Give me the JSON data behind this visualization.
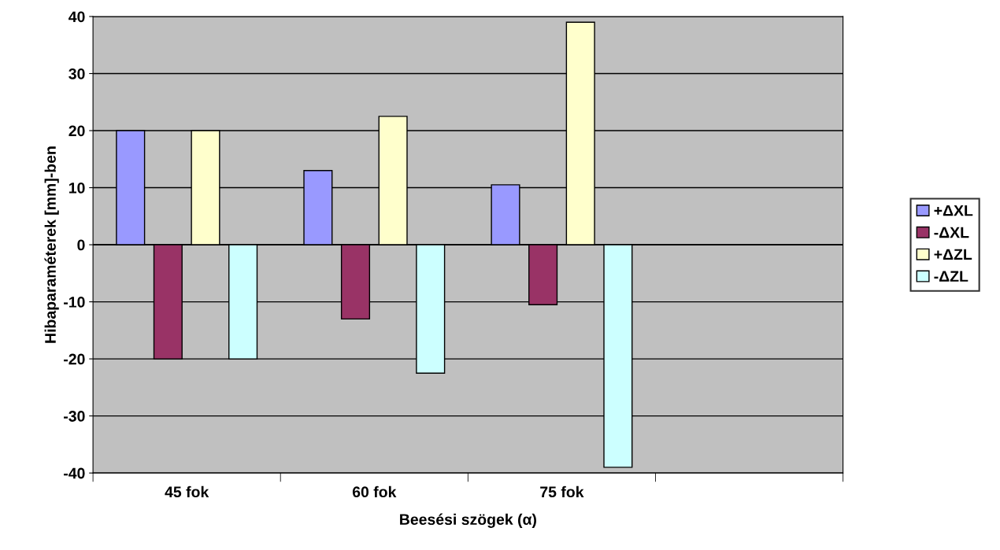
{
  "chart_data": {
    "type": "bar",
    "xlabel": "Beesési szögek (α)",
    "ylabel": "Hibaparaméterek [mm]-ben",
    "categories": [
      "45 fok",
      "60 fok",
      "75 fok",
      null
    ],
    "series": [
      {
        "name": "+ΔXL",
        "color": "#9999ff",
        "values": [
          20,
          13,
          10.5,
          null
        ]
      },
      {
        "name": "-ΔXL",
        "color": "#993366",
        "values": [
          -20,
          -13,
          -10.5,
          null
        ]
      },
      {
        "name": "+ΔZL",
        "color": "#ffffcc",
        "values": [
          20,
          22.5,
          39,
          null
        ]
      },
      {
        "name": "-ΔZL",
        "color": "#ccffff",
        "values": [
          -20,
          -22.5,
          -39,
          null
        ]
      }
    ],
    "ylim": [
      -40,
      40
    ],
    "yticks": [
      -40,
      -30,
      -20,
      -10,
      0,
      10,
      20,
      30,
      40
    ],
    "grid": "y",
    "legend": "right"
  }
}
